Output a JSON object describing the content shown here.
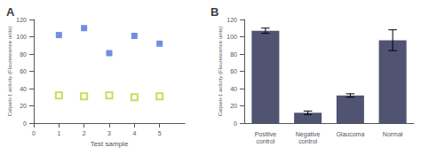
{
  "chart_data": [
    {
      "type": "scatter",
      "title": "A",
      "xlabel": "Test sample",
      "ylabel": "Calpain-1 activity (Flourescence units)",
      "x": [
        1,
        2,
        3,
        4,
        5
      ],
      "xlim": [
        0,
        6
      ],
      "ylim": [
        0,
        120
      ],
      "xticks": [
        0,
        1,
        2,
        3,
        4,
        5
      ],
      "yticks": [
        0,
        20,
        40,
        60,
        80,
        100,
        120
      ],
      "grid": false,
      "series": [
        {
          "marker": "square",
          "values": [
            102,
            110,
            81,
            101,
            92
          ]
        },
        {
          "marker": "open_square",
          "values": [
            32,
            31,
            32,
            30,
            31
          ]
        }
      ]
    },
    {
      "type": "bar",
      "title": "B",
      "ylabel": "Calpain-1 activity (Flourescence units)",
      "categories": [
        "Positive\ncontrol",
        "Negative\ncontrol",
        "Glaucoma",
        "Normal"
      ],
      "values": [
        107,
        12,
        32,
        96
      ],
      "errors": [
        3,
        2,
        2,
        12
      ],
      "ylim": [
        0,
        120
      ],
      "yticks": [
        0,
        20,
        40,
        60,
        80,
        100,
        120
      ],
      "grid": false
    }
  ]
}
